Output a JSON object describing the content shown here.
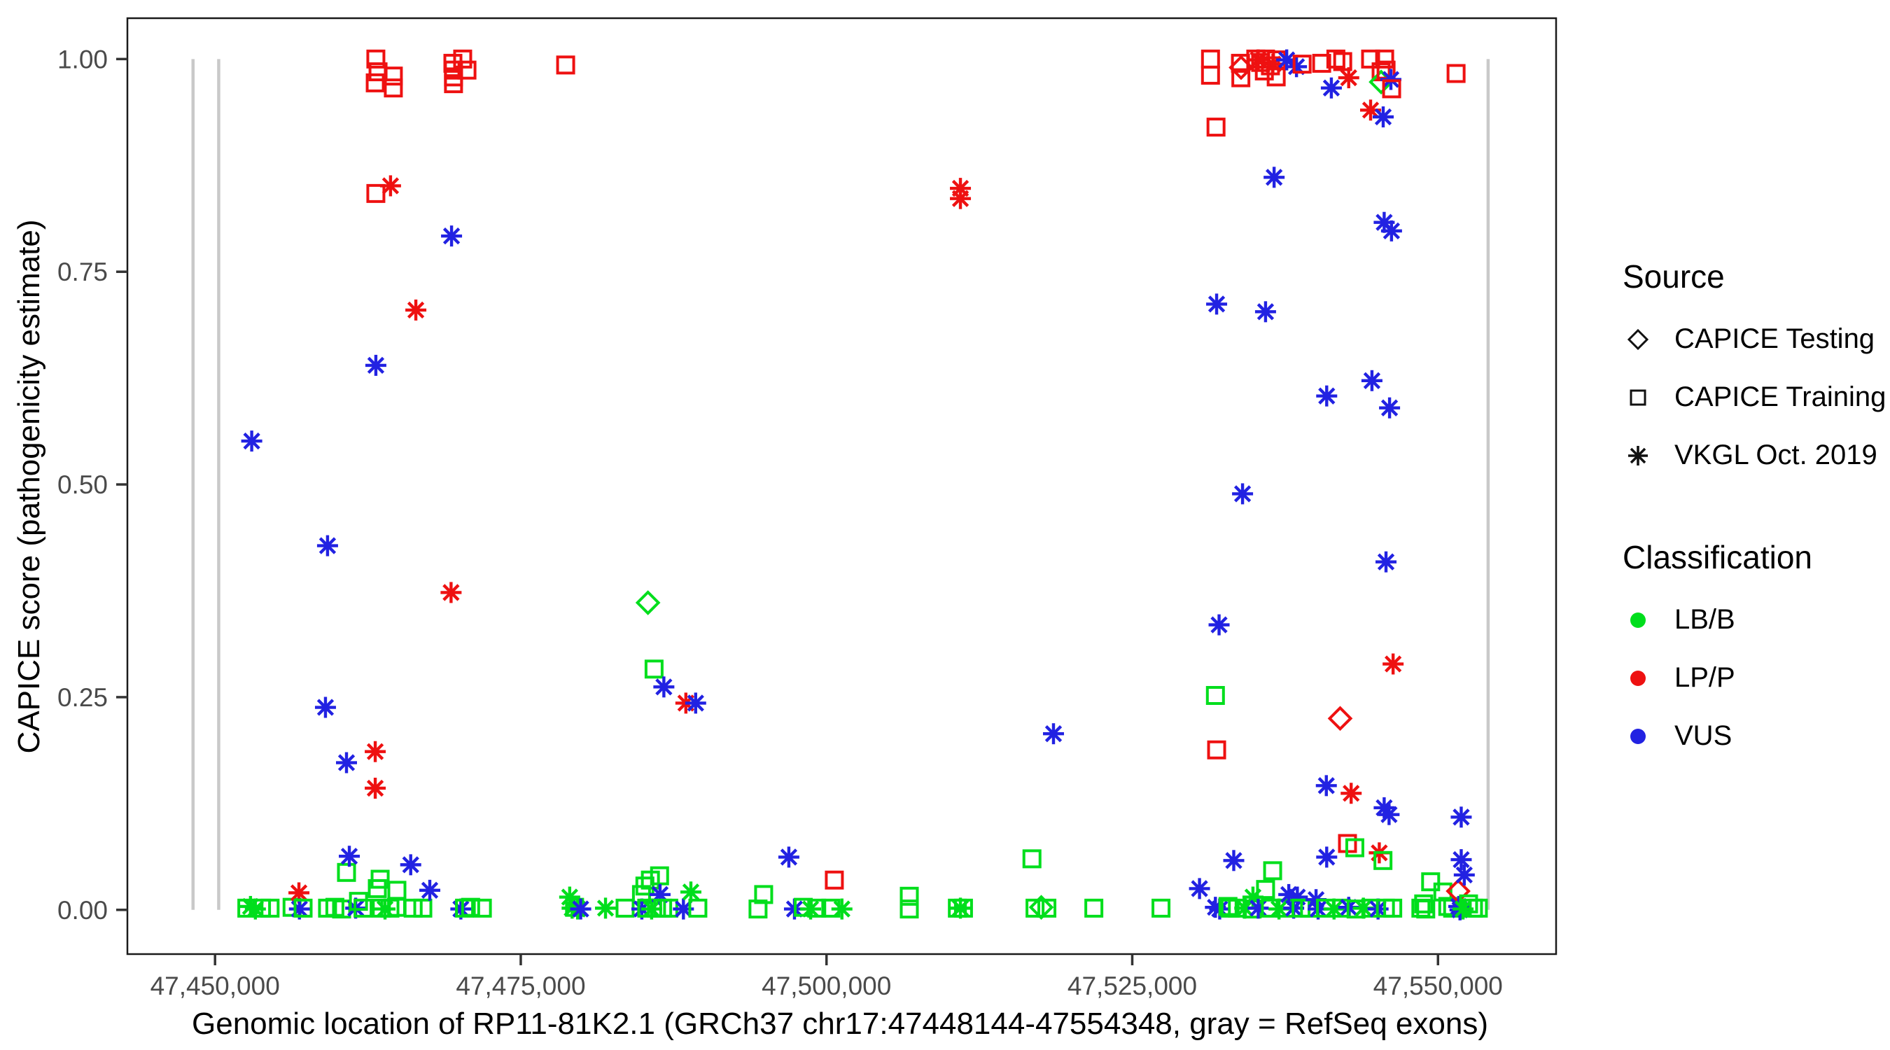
{
  "chart_data": {
    "type": "scatter",
    "xlabel": "Genomic location of RP11-81K2.1 (GRCh37 chr17:47448144-47554348, gray = RefSeq exons)",
    "ylabel": "CAPICE score (pathogenicity estimate)",
    "xlim": [
      47442834,
      47559658
    ],
    "ylim": [
      -0.052,
      1.048
    ],
    "grid": false,
    "x_ticks": [
      {
        "v": 47450000,
        "label": "47,450,000"
      },
      {
        "v": 47475000,
        "label": "47,475,000"
      },
      {
        "v": 47500000,
        "label": "47,500,000"
      },
      {
        "v": 47525000,
        "label": "47,525,000"
      },
      {
        "v": 47550000,
        "label": "47,550,000"
      }
    ],
    "y_ticks": [
      {
        "v": 0.0,
        "label": "0.00"
      },
      {
        "v": 0.25,
        "label": "0.25"
      },
      {
        "v": 0.5,
        "label": "0.50"
      },
      {
        "v": 0.75,
        "label": "0.75"
      },
      {
        "v": 1.0,
        "label": "1.00"
      }
    ],
    "exons_bp": [
      47448200,
      47450300,
      47554100
    ],
    "exon_color": "#c9c9c9",
    "colors": {
      "g": "#00DE1C",
      "r": "#EE1111",
      "b": "#2222E2"
    },
    "shape_legend": {
      "s": "CAPICE Training",
      "d": "CAPICE Testing",
      "a": "VKGL Oct. 2019"
    },
    "points": [
      [
        47452600,
        0.002,
        "s",
        "g"
      ],
      [
        47452900,
        0.004,
        "a",
        "g"
      ],
      [
        47453000,
        0.551,
        "a",
        "b"
      ],
      [
        47453300,
        0.001,
        "a",
        "g"
      ],
      [
        47453800,
        0.002,
        "s",
        "g"
      ],
      [
        47454500,
        0.002,
        "s",
        "g"
      ],
      [
        47456300,
        0.003,
        "s",
        "g"
      ],
      [
        47456860,
        0.02,
        "a",
        "r"
      ],
      [
        47456900,
        0.001,
        "a",
        "b"
      ],
      [
        47457200,
        0.002,
        "s",
        "g"
      ],
      [
        47459030,
        0.238,
        "a",
        "b"
      ],
      [
        47459200,
        0.428,
        "a",
        "b"
      ],
      [
        47459200,
        0.002,
        "s",
        "g"
      ],
      [
        47459800,
        0.003,
        "s",
        "g"
      ],
      [
        47460350,
        0.001,
        "s",
        "g"
      ],
      [
        47460750,
        0.173,
        "a",
        "b"
      ],
      [
        47460750,
        0.044,
        "s",
        "g"
      ],
      [
        47460980,
        0.063,
        "a",
        "b"
      ],
      [
        47461500,
        0.002,
        "a",
        "b"
      ],
      [
        47461730,
        0.01,
        "s",
        "g"
      ],
      [
        47462100,
        0.002,
        "s",
        "g"
      ],
      [
        47463100,
        0.972,
        "s",
        "r"
      ],
      [
        47463100,
        0.186,
        "a",
        "r"
      ],
      [
        47463100,
        0.143,
        "a",
        "r"
      ],
      [
        47463150,
        1.0,
        "s",
        "r"
      ],
      [
        47463150,
        0.842,
        "s",
        "r"
      ],
      [
        47463150,
        0.64,
        "a",
        "b"
      ],
      [
        47463270,
        0.025,
        "s",
        "g"
      ],
      [
        47463330,
        0.985,
        "s",
        "r"
      ],
      [
        47463500,
        0.036,
        "s",
        "g"
      ],
      [
        47463600,
        0.002,
        "s",
        "g"
      ],
      [
        47463900,
        0.001,
        "a",
        "g"
      ],
      [
        47464300,
        0.002,
        "s",
        "g"
      ],
      [
        47464350,
        0.851,
        "a",
        "r"
      ],
      [
        47464580,
        0.98,
        "s",
        "r"
      ],
      [
        47464580,
        0.966,
        "s",
        "r"
      ],
      [
        47464840,
        0.003,
        "s",
        "g"
      ],
      [
        47464870,
        0.023,
        "s",
        "g"
      ],
      [
        47466000,
        0.053,
        "a",
        "b"
      ],
      [
        47466200,
        0.002,
        "s",
        "g"
      ],
      [
        47466420,
        0.705,
        "a",
        "r"
      ],
      [
        47466990,
        0.002,
        "s",
        "g"
      ],
      [
        47467560,
        0.023,
        "a",
        "b"
      ],
      [
        47469300,
        0.373,
        "a",
        "r"
      ],
      [
        47469340,
        0.792,
        "a",
        "b"
      ],
      [
        47469450,
        0.995,
        "s",
        "r"
      ],
      [
        47469500,
        0.987,
        "s",
        "r"
      ],
      [
        47469500,
        0.979,
        "s",
        "r"
      ],
      [
        47469500,
        0.971,
        "s",
        "r"
      ],
      [
        47470100,
        0.001,
        "a",
        "b"
      ],
      [
        47470250,
        1.0,
        "s",
        "r"
      ],
      [
        47470400,
        0.002,
        "s",
        "g"
      ],
      [
        47470600,
        0.987,
        "s",
        "r"
      ],
      [
        47470900,
        0.003,
        "s",
        "g"
      ],
      [
        47471860,
        0.002,
        "s",
        "g"
      ],
      [
        47478670,
        0.993,
        "s",
        "r"
      ],
      [
        47479000,
        0.015,
        "a",
        "g"
      ],
      [
        47479200,
        0.002,
        "a",
        "g"
      ],
      [
        47479400,
        0.003,
        "s",
        "g"
      ],
      [
        47479650,
        0.001,
        "a",
        "g"
      ],
      [
        47479900,
        0.001,
        "a",
        "b"
      ],
      [
        47481930,
        0.002,
        "a",
        "g"
      ],
      [
        47483530,
        0.002,
        "s",
        "g"
      ],
      [
        47484870,
        0.018,
        "s",
        "g"
      ],
      [
        47484900,
        0.001,
        "a",
        "b"
      ],
      [
        47485150,
        0.028,
        "s",
        "g"
      ],
      [
        47485300,
        0.002,
        "s",
        "g"
      ],
      [
        47485400,
        0.361,
        "d",
        "g"
      ],
      [
        47485600,
        0.035,
        "s",
        "g"
      ],
      [
        47485700,
        0.001,
        "a",
        "g"
      ],
      [
        47485900,
        0.283,
        "s",
        "g"
      ],
      [
        47486100,
        0.002,
        "s",
        "g"
      ],
      [
        47486350,
        0.04,
        "s",
        "g"
      ],
      [
        47486390,
        0.018,
        "a",
        "b"
      ],
      [
        47486600,
        0.002,
        "s",
        "g"
      ],
      [
        47486700,
        0.262,
        "a",
        "b"
      ],
      [
        47487100,
        0.002,
        "s",
        "g"
      ],
      [
        47488300,
        0.001,
        "a",
        "b"
      ],
      [
        47488500,
        0.243,
        "a",
        "r"
      ],
      [
        47488910,
        0.021,
        "a",
        "g"
      ],
      [
        47489300,
        0.243,
        "a",
        "b"
      ],
      [
        47489480,
        0.002,
        "s",
        "g"
      ],
      [
        47494400,
        0.001,
        "s",
        "g"
      ],
      [
        47494860,
        0.018,
        "s",
        "g"
      ],
      [
        47496920,
        0.062,
        "a",
        "b"
      ],
      [
        47497380,
        0.001,
        "a",
        "b"
      ],
      [
        47498100,
        0.003,
        "s",
        "g"
      ],
      [
        47498700,
        0.001,
        "a",
        "g"
      ],
      [
        47499200,
        0.002,
        "s",
        "g"
      ],
      [
        47500350,
        0.002,
        "s",
        "g"
      ],
      [
        47500640,
        0.035,
        "s",
        "r"
      ],
      [
        47501260,
        0.001,
        "a",
        "g"
      ],
      [
        47506770,
        0.016,
        "s",
        "g"
      ],
      [
        47506770,
        0.001,
        "s",
        "g"
      ],
      [
        47510700,
        0.002,
        "s",
        "g"
      ],
      [
        47510950,
        0.848,
        "a",
        "r"
      ],
      [
        47510950,
        0.836,
        "a",
        "r"
      ],
      [
        47510950,
        0.002,
        "a",
        "g"
      ],
      [
        47511200,
        0.002,
        "s",
        "g"
      ],
      [
        47516800,
        0.06,
        "s",
        "g"
      ],
      [
        47517050,
        0.002,
        "s",
        "g"
      ],
      [
        47517560,
        0.003,
        "d",
        "g"
      ],
      [
        47518020,
        0.002,
        "s",
        "g"
      ],
      [
        47518560,
        0.207,
        "a",
        "b"
      ],
      [
        47521860,
        0.002,
        "s",
        "g"
      ],
      [
        47527350,
        0.002,
        "s",
        "g"
      ],
      [
        47530500,
        0.025,
        "a",
        "b"
      ],
      [
        47531400,
        1.0,
        "s",
        "r"
      ],
      [
        47531400,
        0.981,
        "s",
        "r"
      ],
      [
        47531800,
        0.252,
        "s",
        "g"
      ],
      [
        47531800,
        0.003,
        "a",
        "b"
      ],
      [
        47531850,
        0.92,
        "s",
        "r"
      ],
      [
        47531900,
        0.712,
        "a",
        "b"
      ],
      [
        47531900,
        0.188,
        "s",
        "r"
      ],
      [
        47532100,
        0.335,
        "a",
        "b"
      ],
      [
        47532150,
        0.001,
        "a",
        "b"
      ],
      [
        47532830,
        0.004,
        "s",
        "g"
      ],
      [
        47533000,
        0.002,
        "s",
        "g"
      ],
      [
        47533300,
        0.058,
        "a",
        "b"
      ],
      [
        47533600,
        0.002,
        "s",
        "g"
      ],
      [
        47533850,
        0.995,
        "s",
        "r"
      ],
      [
        47533880,
        0.978,
        "s",
        "r"
      ],
      [
        47533900,
        0.99,
        "d",
        "r"
      ],
      [
        47534020,
        0.489,
        "a",
        "b"
      ],
      [
        47534200,
        0.002,
        "a",
        "g"
      ],
      [
        47534800,
        0.001,
        "s",
        "g"
      ],
      [
        47534870,
        0.015,
        "a",
        "g"
      ],
      [
        47535100,
        1.0,
        "s",
        "r"
      ],
      [
        47535300,
        0.999,
        "a",
        "r"
      ],
      [
        47535300,
        0.002,
        "a",
        "b"
      ],
      [
        47535500,
        0.996,
        "s",
        "r"
      ],
      [
        47535800,
        0.986,
        "s",
        "r"
      ],
      [
        47535900,
        1.0,
        "s",
        "r"
      ],
      [
        47535900,
        0.703,
        "a",
        "b"
      ],
      [
        47535900,
        0.024,
        "s",
        "g"
      ],
      [
        47536300,
        0.992,
        "s",
        "r"
      ],
      [
        47536300,
        0.002,
        "s",
        "g"
      ],
      [
        47536480,
        0.046,
        "s",
        "g"
      ],
      [
        47536500,
        0.994,
        "a",
        "r"
      ],
      [
        47536600,
        0.861,
        "a",
        "b"
      ],
      [
        47536770,
        0.979,
        "s",
        "r"
      ],
      [
        47536800,
        0.999,
        "s",
        "r"
      ],
      [
        47537000,
        0.001,
        "a",
        "g"
      ],
      [
        47537500,
        0.002,
        "s",
        "g"
      ],
      [
        47537630,
        0.999,
        "a",
        "b"
      ],
      [
        47537800,
        0.018,
        "a",
        "b"
      ],
      [
        47538200,
        0.002,
        "a",
        "b"
      ],
      [
        47538430,
        0.991,
        "a",
        "b"
      ],
      [
        47538500,
        0.015,
        "a",
        "b"
      ],
      [
        47538800,
        0.002,
        "s",
        "g"
      ],
      [
        47538890,
        0.994,
        "s",
        "r"
      ],
      [
        47539500,
        0.002,
        "s",
        "g"
      ],
      [
        47540030,
        0.012,
        "a",
        "b"
      ],
      [
        47540200,
        0.001,
        "a",
        "b"
      ],
      [
        47540490,
        0.995,
        "s",
        "r"
      ],
      [
        47540800,
        0.002,
        "s",
        "g"
      ],
      [
        47540870,
        0.146,
        "a",
        "b"
      ],
      [
        47540900,
        0.604,
        "a",
        "b"
      ],
      [
        47540900,
        0.062,
        "a",
        "b"
      ],
      [
        47541280,
        0.966,
        "a",
        "b"
      ],
      [
        47541500,
        0.001,
        "a",
        "g"
      ],
      [
        47541650,
        1.0,
        "s",
        "r"
      ],
      [
        47542000,
        0.225,
        "d",
        "r"
      ],
      [
        47542100,
        0.002,
        "s",
        "g"
      ],
      [
        47542210,
        0.997,
        "s",
        "r"
      ],
      [
        47542600,
        0.078,
        "s",
        "r"
      ],
      [
        47542700,
        0.978,
        "a",
        "r"
      ],
      [
        47542700,
        0.003,
        "a",
        "b"
      ],
      [
        47542900,
        0.137,
        "a",
        "r"
      ],
      [
        47543200,
        0.073,
        "s",
        "g"
      ],
      [
        47543300,
        0.001,
        "s",
        "g"
      ],
      [
        47543900,
        0.002,
        "a",
        "g"
      ],
      [
        47544490,
        1.0,
        "s",
        "r"
      ],
      [
        47544490,
        0.94,
        "a",
        "r"
      ],
      [
        47544500,
        0.002,
        "s",
        "g"
      ],
      [
        47544600,
        0.622,
        "a",
        "b"
      ],
      [
        47545100,
        0.001,
        "a",
        "b"
      ],
      [
        47545200,
        0.067,
        "a",
        "r"
      ],
      [
        47545350,
        0.985,
        "s",
        "r"
      ],
      [
        47545350,
        0.973,
        "d",
        "g"
      ],
      [
        47545500,
        0.058,
        "s",
        "g"
      ],
      [
        47545520,
        0.932,
        "a",
        "b"
      ],
      [
        47545600,
        0.808,
        "a",
        "b"
      ],
      [
        47545600,
        0.12,
        "a",
        "b"
      ],
      [
        47545640,
        1.0,
        "s",
        "r"
      ],
      [
        47545700,
        0.002,
        "s",
        "g"
      ],
      [
        47545750,
        0.409,
        "a",
        "b"
      ],
      [
        47545755,
        0.987,
        "s",
        "r"
      ],
      [
        47546000,
        0.112,
        "a",
        "b"
      ],
      [
        47546040,
        0.59,
        "a",
        "b"
      ],
      [
        47546150,
        0.976,
        "a",
        "b"
      ],
      [
        47546200,
        0.798,
        "a",
        "b"
      ],
      [
        47546210,
        0.965,
        "s",
        "r"
      ],
      [
        47546300,
        0.002,
        "s",
        "g"
      ],
      [
        47546330,
        0.289,
        "a",
        "r"
      ],
      [
        47548600,
        0.002,
        "s",
        "g"
      ],
      [
        47548830,
        0.007,
        "s",
        "g"
      ],
      [
        47549000,
        0.001,
        "s",
        "g"
      ],
      [
        47549400,
        0.033,
        "s",
        "g"
      ],
      [
        47550400,
        0.021,
        "s",
        "g"
      ],
      [
        47550800,
        0.004,
        "s",
        "g"
      ],
      [
        47551200,
        0.002,
        "s",
        "g"
      ],
      [
        47551480,
        0.983,
        "s",
        "r"
      ],
      [
        47551650,
        0.022,
        "d",
        "r"
      ],
      [
        47551700,
        0.004,
        "a",
        "b"
      ],
      [
        47551800,
        0.0,
        "a",
        "b"
      ],
      [
        47551900,
        0.109,
        "a",
        "b"
      ],
      [
        47551900,
        0.059,
        "a",
        "b"
      ],
      [
        47552050,
        0.001,
        "a",
        "g"
      ],
      [
        47552150,
        0.041,
        "a",
        "b"
      ],
      [
        47552500,
        0.007,
        "s",
        "g"
      ],
      [
        47552900,
        0.002,
        "s",
        "g"
      ],
      [
        47553300,
        0.002,
        "s",
        "g"
      ]
    ]
  },
  "legend": {
    "source": {
      "title": "Source",
      "items": [
        {
          "label": "CAPICE Testing",
          "shape": "diamond"
        },
        {
          "label": "CAPICE Training",
          "shape": "square"
        },
        {
          "label": "VKGL Oct. 2019",
          "shape": "asterisk"
        }
      ]
    },
    "classification": {
      "title": "Classification",
      "items": [
        {
          "label": "LB/B",
          "color": "#00DE1C"
        },
        {
          "label": "LP/P",
          "color": "#EE1111"
        },
        {
          "label": "VUS",
          "color": "#2222E2"
        }
      ]
    }
  }
}
